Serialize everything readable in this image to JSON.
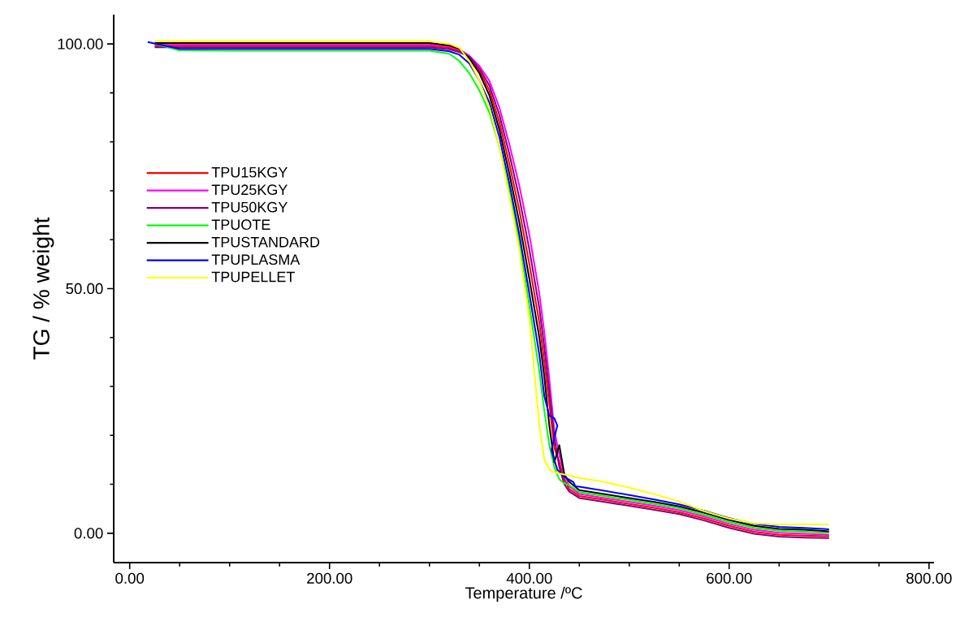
{
  "chart_data": {
    "type": "line",
    "xlabel": "Temperature /ºC",
    "ylabel": "TG / % weight",
    "xlim": [
      -16,
      805
    ],
    "ylim": [
      -6,
      106
    ],
    "xticks": [
      {
        "value": 0,
        "label": "0.00"
      },
      {
        "value": 200,
        "label": "200.00"
      },
      {
        "value": 400,
        "label": "400.00"
      },
      {
        "value": 600,
        "label": "600.00"
      },
      {
        "value": 800,
        "label": "800.00"
      }
    ],
    "yticks": [
      {
        "value": 0,
        "label": "0.00"
      },
      {
        "value": 50,
        "label": "50.00"
      },
      {
        "value": 100,
        "label": "100.00"
      }
    ],
    "grid": false,
    "legend": "top left",
    "marker": "none",
    "line_style": "solid",
    "series": [
      {
        "name": "TPU15KGY",
        "color": "#ff0000",
        "x": [
          25,
          50,
          100,
          150,
          200,
          250,
          300,
          320,
          330,
          340,
          350,
          360,
          370,
          380,
          390,
          400,
          410,
          415,
          420,
          425,
          430,
          435,
          440,
          450,
          475,
          500,
          525,
          550,
          575,
          600,
          625,
          650,
          675,
          700
        ],
        "values": [
          99.6,
          99.6,
          99.6,
          99.6,
          99.6,
          99.6,
          99.6,
          99.2,
          98.6,
          97.2,
          94.5,
          90.5,
          84,
          75.5,
          66,
          55,
          43,
          35,
          26.5,
          17.5,
          14.5,
          11,
          9,
          7.6,
          6.8,
          6,
          5.2,
          4.3,
          3,
          1.5,
          0.3,
          -0.3,
          -0.5,
          -0.6
        ]
      },
      {
        "name": "TPU25KGY",
        "color": "#ff00ff",
        "x": [
          25,
          50,
          100,
          150,
          200,
          250,
          300,
          320,
          330,
          340,
          350,
          360,
          370,
          380,
          390,
          400,
          410,
          415,
          420,
          425,
          430,
          435,
          440,
          450,
          475,
          500,
          525,
          550,
          575,
          600,
          625,
          650,
          675,
          700
        ],
        "values": [
          99.9,
          99.9,
          99.9,
          99.9,
          99.9,
          99.9,
          99.9,
          99.5,
          98.9,
          97.6,
          95.5,
          92.5,
          87,
          79.5,
          71,
          61,
          49,
          41,
          31.5,
          21,
          16,
          12,
          9.6,
          8,
          7.2,
          6.4,
          5.6,
          4.7,
          3.4,
          1.9,
          0.7,
          0.1,
          -0.1,
          -0.3
        ]
      },
      {
        "name": "TPU50KGY",
        "color": "#800080",
        "x": [
          25,
          50,
          100,
          150,
          200,
          250,
          300,
          320,
          330,
          340,
          350,
          360,
          370,
          380,
          390,
          400,
          410,
          415,
          420,
          425,
          430,
          435,
          440,
          450,
          475,
          500,
          525,
          550,
          575,
          600,
          625,
          650,
          675,
          700
        ],
        "values": [
          99.3,
          99.3,
          99.3,
          99.3,
          99.3,
          99.3,
          99.3,
          98.9,
          98.3,
          97.4,
          95,
          91.5,
          85.5,
          77.5,
          68.5,
          58,
          46,
          38,
          29,
          19.5,
          13.5,
          10,
          8.5,
          7.2,
          6.4,
          5.6,
          4.8,
          3.9,
          2.6,
          1.1,
          -0.1,
          -0.7,
          -0.9,
          -1
        ]
      },
      {
        "name": "TPUOTE",
        "color": "#00ff00",
        "x": [
          25,
          50,
          100,
          150,
          200,
          250,
          300,
          320,
          330,
          340,
          350,
          360,
          370,
          380,
          390,
          400,
          410,
          415,
          420,
          425,
          430,
          435,
          440,
          450,
          475,
          500,
          525,
          550,
          575,
          600,
          625,
          650,
          675,
          700
        ],
        "values": [
          100,
          98.7,
          98.6,
          98.6,
          98.6,
          98.6,
          98.6,
          98,
          96.5,
          94,
          90.5,
          86,
          79,
          70,
          59.5,
          46.5,
          33,
          25,
          18,
          13.5,
          11,
          10.2,
          9.8,
          8.4,
          7.6,
          6.8,
          6,
          5.1,
          3.8,
          2.3,
          1.1,
          0.5,
          0.3,
          0.1
        ]
      },
      {
        "name": "TPUSTANDARD",
        "color": "#000000",
        "x": [
          25,
          50,
          100,
          150,
          200,
          250,
          300,
          320,
          330,
          340,
          350,
          360,
          370,
          380,
          390,
          400,
          410,
          415,
          420,
          425,
          430,
          435,
          440,
          450,
          475,
          500,
          525,
          550,
          575,
          600,
          625,
          650,
          675,
          700
        ],
        "values": [
          100.2,
          100.2,
          100.2,
          100.2,
          100.2,
          100.2,
          100.2,
          99.7,
          99,
          97,
          94,
          89.5,
          82.5,
          73.5,
          63.5,
          52,
          40,
          32,
          22,
          14.5,
          18,
          12,
          10.5,
          8.8,
          8,
          7.2,
          6.4,
          5.5,
          4.2,
          2.7,
          1.5,
          0.9,
          0.7,
          0.4
        ]
      },
      {
        "name": "TPUPLASMA",
        "color": "#0000ff",
        "x": [
          18,
          50,
          100,
          150,
          200,
          250,
          300,
          320,
          330,
          340,
          350,
          360,
          370,
          380,
          390,
          400,
          410,
          415,
          420,
          425,
          428,
          422,
          428,
          435,
          444,
          446,
          450,
          475,
          500,
          525,
          550,
          575,
          600,
          625,
          650,
          675,
          700
        ],
        "values": [
          100.4,
          99,
          99,
          99,
          99,
          99,
          99,
          98.5,
          97.8,
          96,
          92.5,
          88,
          81,
          71.5,
          61,
          49,
          36.5,
          28,
          24,
          23.5,
          22,
          17,
          13,
          11.5,
          10.5,
          9.6,
          9.5,
          8.7,
          7.8,
          6.9,
          5.9,
          4.6,
          3.1,
          1.9,
          1.3,
          1.1,
          0.8
        ]
      },
      {
        "name": "TPUPELLET",
        "color": "#ffff00",
        "x": [
          25,
          50,
          100,
          150,
          200,
          250,
          300,
          320,
          330,
          340,
          350,
          360,
          370,
          380,
          390,
          400,
          405,
          410,
          415,
          420,
          425,
          430,
          440,
          450,
          475,
          500,
          525,
          550,
          575,
          600,
          625,
          650,
          675,
          700
        ],
        "values": [
          100.6,
          100.6,
          100.6,
          100.6,
          100.6,
          100.6,
          100.6,
          100,
          99.2,
          96.5,
          92.5,
          87,
          79,
          69,
          58,
          44,
          33,
          22,
          15,
          13,
          12.5,
          12.2,
          11.8,
          11.3,
          10.5,
          9.3,
          8,
          6.5,
          4.5,
          3,
          2,
          1.8,
          1.8,
          1.8
        ]
      }
    ]
  }
}
